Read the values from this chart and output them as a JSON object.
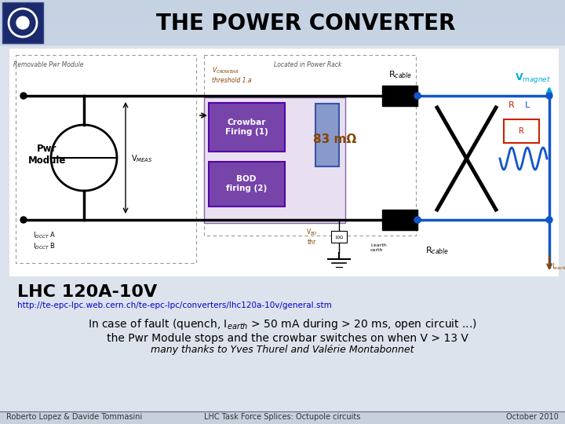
{
  "title": "THE POWER CONVERTER",
  "title_fontsize": 20,
  "title_fontweight": "bold",
  "slide_bg": "#dde3ec",
  "header_bg": "#c8d4e4",
  "circuit_bg": "#ffffff",
  "label_lhc": "LHC 120A-10V",
  "label_lhc_fontsize": 16,
  "label_83mohm": "83 mΩ",
  "url": "http://te-epc-lpc.web.cern.ch/te-epc-lpc/converters/lhc120a-10v/general.stm",
  "url_color": "#0000cc",
  "url_fontsize": 7.5,
  "body_fontsize": 10,
  "italic_text": "many thanks to Yves Thurel and Valérie Montabonnet",
  "italic_fontsize": 9,
  "footer_left": "Roberto Lopez & Davide Tommasini",
  "footer_center": "LHC Task Force Splices: Octupole circuits",
  "footer_right": "October 2010",
  "footer_fontsize": 7,
  "footer_color": "#333333",
  "wire_color": "#000000",
  "blue_color": "#1155cc",
  "purple_color": "#7744aa",
  "brown_color": "#884400"
}
